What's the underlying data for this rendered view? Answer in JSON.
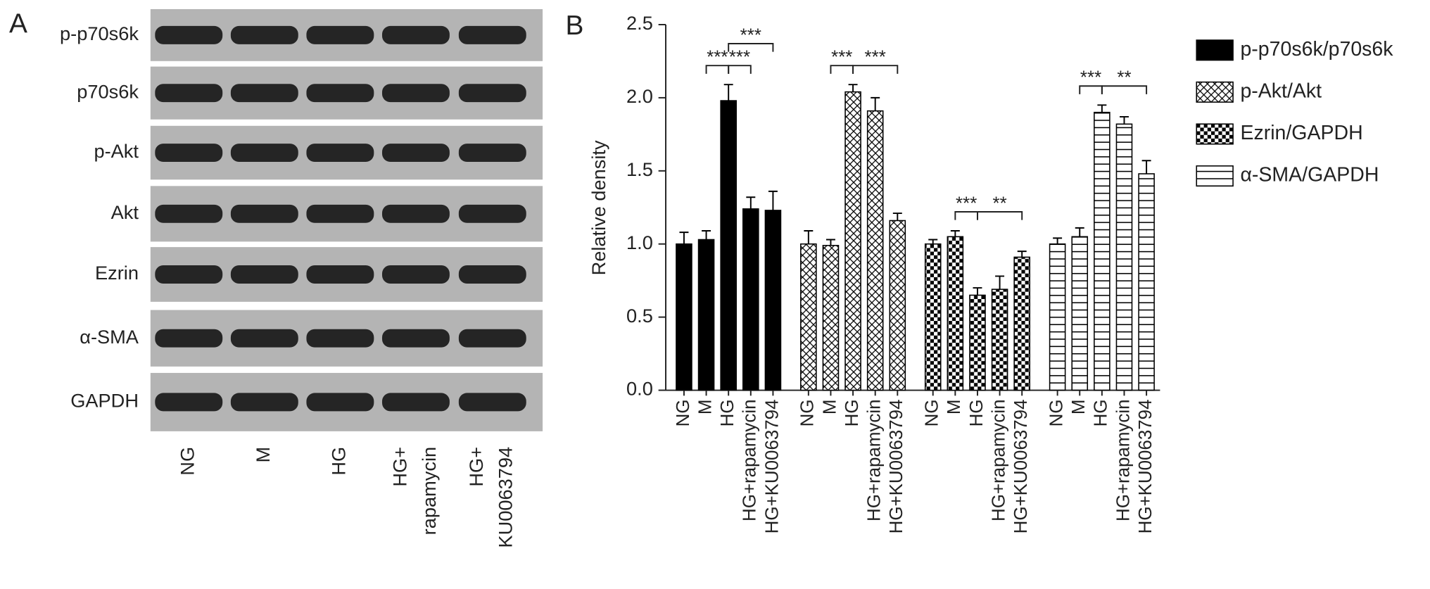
{
  "panel_a": {
    "label": "A",
    "rows": [
      "p-p70s6k",
      "p70s6k",
      "p-Akt",
      "Akt",
      "Ezrin",
      "α-SMA",
      "GAPDH"
    ],
    "lanes": [
      [
        "NG"
      ],
      [
        "M"
      ],
      [
        "HG"
      ],
      [
        "HG+",
        "rapamycin"
      ],
      [
        "HG+",
        "KU0063794"
      ]
    ]
  },
  "chart_data": {
    "type": "bar",
    "label": "B",
    "ylabel": "Relative density",
    "ylim": [
      0,
      2.5
    ],
    "yticks": [
      {
        "value": 0,
        "label": "0.0"
      },
      0.5,
      {
        "value": 1,
        "label": "1.0"
      },
      1.5,
      {
        "value": 2,
        "label": "2.0"
      },
      2.5
    ],
    "categories": [
      "NG",
      "M",
      "HG",
      "HG+rapamycin",
      "HG+KU0063794"
    ],
    "series": [
      {
        "name": "p-p70s6k/p70s6k",
        "color": "#000000",
        "pattern": "solid",
        "values": [
          1.0,
          1.03,
          1.98,
          1.24,
          1.23
        ],
        "errors": [
          0.08,
          0.06,
          0.11,
          0.08,
          0.13
        ],
        "significance": [
          {
            "pair": [
              "M",
              "HG"
            ],
            "label": "***"
          },
          {
            "pair": [
              "HG",
              "HG+rapamycin"
            ],
            "label": "***"
          },
          {
            "pair": [
              "HG",
              "HG+KU0063794"
            ],
            "label": "***"
          }
        ]
      },
      {
        "name": "p-Akt/Akt",
        "color": "#000000",
        "pattern": "crosshatch",
        "values": [
          1.0,
          0.99,
          2.04,
          1.91,
          1.16
        ],
        "errors": [
          0.09,
          0.04,
          0.05,
          0.09,
          0.05
        ],
        "significance": [
          {
            "pair": [
              "M",
              "HG"
            ],
            "label": "***"
          },
          {
            "pair": [
              "HG",
              "HG+KU0063794"
            ],
            "label": "***"
          }
        ]
      },
      {
        "name": "Ezrin/GAPDH",
        "color": "#000000",
        "pattern": "checker",
        "values": [
          1.0,
          1.05,
          0.65,
          0.69,
          0.91
        ],
        "errors": [
          0.03,
          0.04,
          0.05,
          0.09,
          0.04
        ],
        "significance": [
          {
            "pair": [
              "M",
              "HG"
            ],
            "label": "***"
          },
          {
            "pair": [
              "HG",
              "HG+KU0063794"
            ],
            "label": "**"
          }
        ]
      },
      {
        "name": "α-SMA/GAPDH",
        "color": "#000000",
        "pattern": "horizontal",
        "values": [
          1.0,
          1.05,
          1.9,
          1.82,
          1.48
        ],
        "errors": [
          0.04,
          0.06,
          0.05,
          0.05,
          0.09
        ],
        "significance": [
          {
            "pair": [
              "M",
              "HG"
            ],
            "label": "***"
          },
          {
            "pair": [
              "HG",
              "HG+KU0063794"
            ],
            "label": "**"
          }
        ]
      }
    ]
  }
}
